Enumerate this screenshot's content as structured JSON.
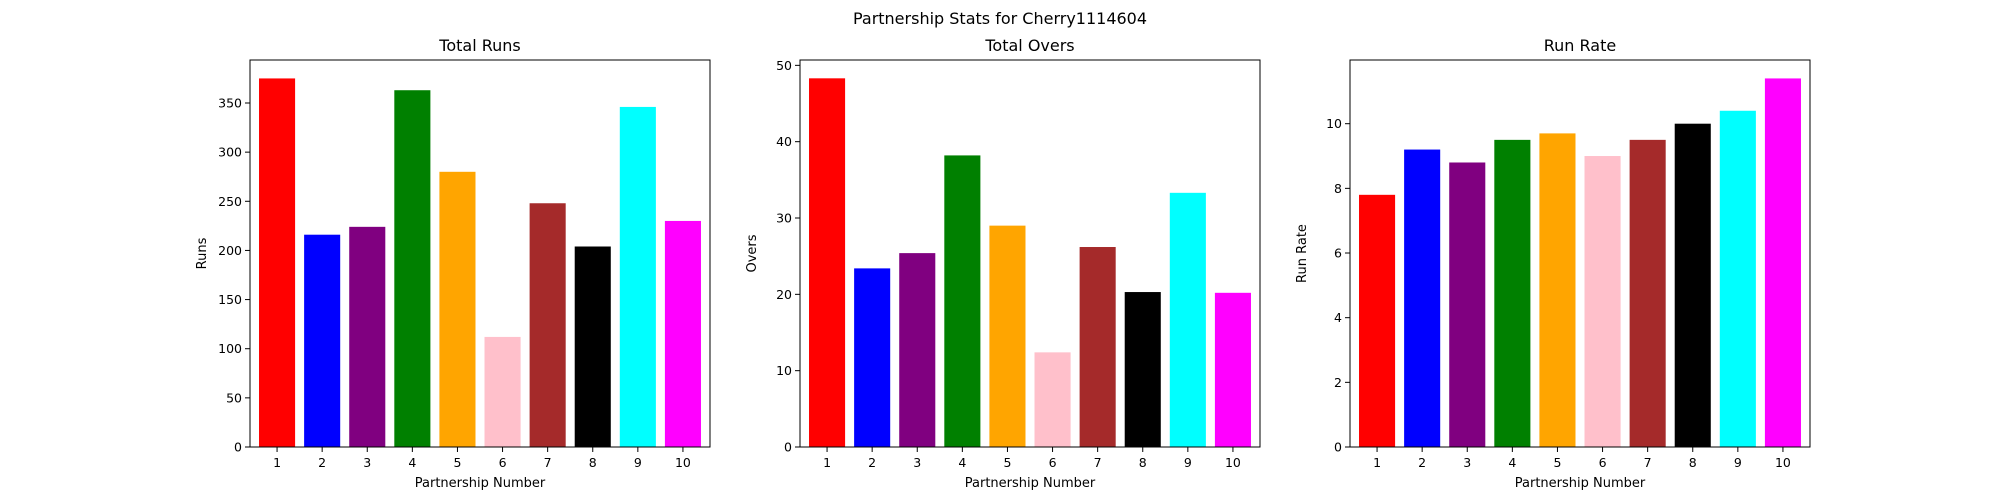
{
  "figure": {
    "suptitle": "Partnership Stats for Cherry1114604"
  },
  "chart_data": [
    {
      "type": "bar",
      "title": "Total Runs",
      "xlabel": "Partnership Number",
      "ylabel": "Runs",
      "categories": [
        "1",
        "2",
        "3",
        "4",
        "5",
        "6",
        "7",
        "8",
        "9",
        "10"
      ],
      "values": [
        375,
        216,
        224,
        363,
        280,
        112,
        248,
        204,
        346,
        230
      ],
      "colors": [
        "#ff0000",
        "#0000ff",
        "#800080",
        "#008000",
        "#ffa500",
        "#ffc0cb",
        "#a52a2a",
        "#000000",
        "#00ffff",
        "#ff00ff"
      ],
      "ylim": [
        0,
        393.75
      ],
      "yticks": [
        0,
        50,
        100,
        150,
        200,
        250,
        300,
        350
      ],
      "grid": false,
      "legend": "none"
    },
    {
      "type": "bar",
      "title": "Total Overs",
      "xlabel": "Partnership Number",
      "ylabel": "Overs",
      "categories": [
        "1",
        "2",
        "3",
        "4",
        "5",
        "6",
        "7",
        "8",
        "9",
        "10"
      ],
      "values": [
        48.3,
        23.4,
        25.4,
        38.2,
        29.0,
        12.4,
        26.2,
        20.3,
        33.3,
        20.2
      ],
      "colors": [
        "#ff0000",
        "#0000ff",
        "#800080",
        "#008000",
        "#ffa500",
        "#ffc0cb",
        "#a52a2a",
        "#000000",
        "#00ffff",
        "#ff00ff"
      ],
      "ylim": [
        0,
        50.7
      ],
      "yticks": [
        0,
        10,
        20,
        30,
        40,
        50
      ],
      "grid": false,
      "legend": "none"
    },
    {
      "type": "bar",
      "title": "Run Rate",
      "xlabel": "Partnership Number",
      "ylabel": "Run Rate",
      "categories": [
        "1",
        "2",
        "3",
        "4",
        "5",
        "6",
        "7",
        "8",
        "9",
        "10"
      ],
      "values": [
        7.8,
        9.2,
        8.8,
        9.5,
        9.7,
        9.0,
        9.5,
        10.0,
        10.4,
        11.4
      ],
      "colors": [
        "#ff0000",
        "#0000ff",
        "#800080",
        "#008000",
        "#ffa500",
        "#ffc0cb",
        "#a52a2a",
        "#000000",
        "#00ffff",
        "#ff00ff"
      ],
      "ylim": [
        0,
        11.97
      ],
      "yticks": [
        0,
        2,
        4,
        6,
        8,
        10
      ],
      "grid": false,
      "legend": "none"
    }
  ]
}
